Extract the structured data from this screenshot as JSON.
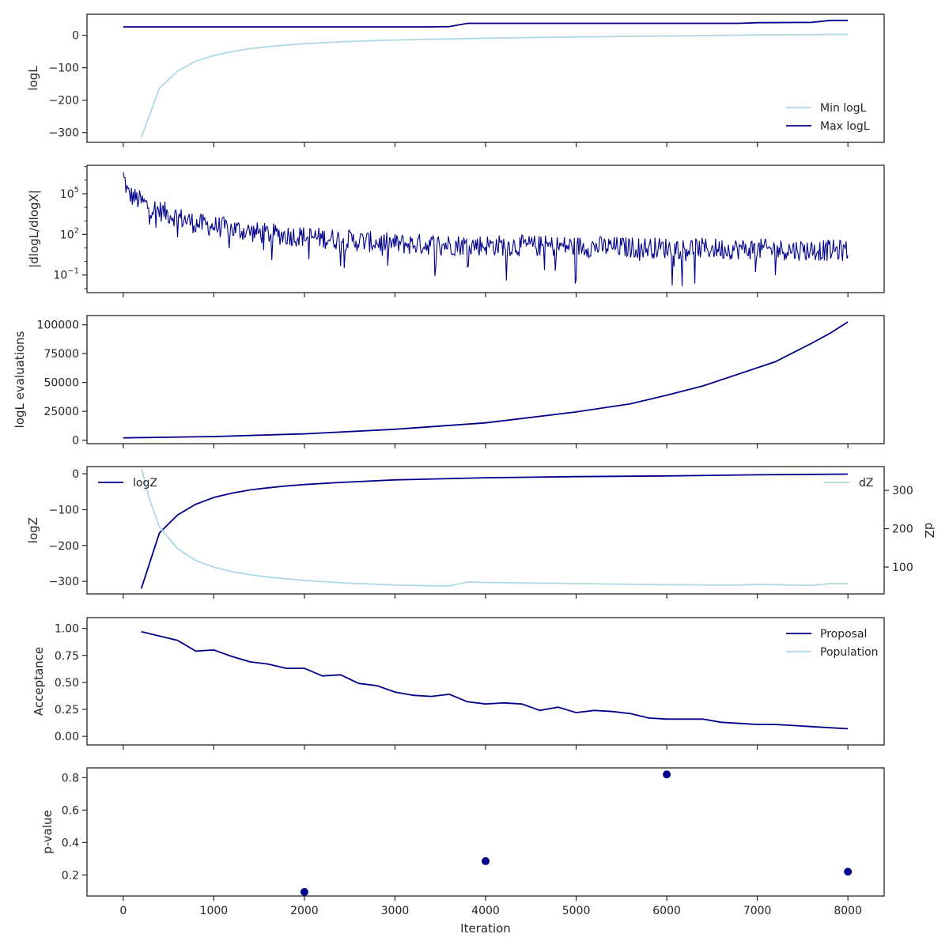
{
  "colors": {
    "dark": "#00008b",
    "light": "#add8e6",
    "axis": "#262626"
  },
  "chart_data": [
    {
      "type": "line",
      "ylabel": "logL",
      "xlim": [
        -400,
        8400
      ],
      "ylim": [
        -330,
        65
      ],
      "yticks": [
        {
          "v": 0,
          "label": "0"
        },
        {
          "v": -100,
          "label": "−100"
        },
        {
          "v": -200,
          "label": "−200"
        },
        {
          "v": -300,
          "label": "−300"
        }
      ],
      "legend": "lower-right",
      "series": [
        {
          "name": "Min logL",
          "color": "light",
          "x": [
            200,
            400,
            600,
            800,
            1000,
            1200,
            1400,
            1600,
            1800,
            2000,
            2400,
            2800,
            3200,
            3600,
            4000,
            5000,
            6000,
            7000,
            8000
          ],
          "y": [
            -315,
            -163,
            -110,
            -80,
            -62,
            -50,
            -41,
            -35,
            -30,
            -26,
            -20,
            -16,
            -13,
            -11,
            -9,
            -5,
            -2,
            1,
            3
          ]
        },
        {
          "name": "Max logL",
          "color": "dark",
          "x": [
            0,
            3400,
            3600,
            3800,
            4400,
            6800,
            7000,
            7600,
            7800,
            8000
          ],
          "y": [
            26,
            26,
            27,
            37,
            37,
            37,
            39,
            40,
            46,
            46
          ]
        }
      ]
    },
    {
      "type": "line",
      "ylabel": "|dlogL/dlogX|",
      "yscale": "log",
      "xlim": [
        -400,
        8400
      ],
      "ylim_log10": [
        -2.3,
        7.1
      ],
      "yticks": [
        {
          "v": 5,
          "base": "10",
          "exp": "5"
        },
        {
          "v": 2,
          "base": "10",
          "exp": "2"
        },
        {
          "v": -1,
          "base": "10",
          "exp": "−1"
        }
      ],
      "series": [
        {
          "color": "dark",
          "noisy": true,
          "x_start": 0,
          "x_end": 8000,
          "x_step": 10,
          "x_knots": [
            0,
            50,
            300,
            800,
            1500,
            3000,
            8000
          ],
          "log10_center_knots": [
            6.5,
            5.0,
            4.0,
            2.8,
            2.1,
            1.3,
            0.8
          ],
          "log10_spread": 0.8
        }
      ]
    },
    {
      "type": "line",
      "ylabel": "logL evaluations",
      "xlim": [
        -400,
        8400
      ],
      "ylim": [
        -3000,
        108000
      ],
      "yticks": [
        {
          "v": 0,
          "label": "0"
        },
        {
          "v": 25000,
          "label": "25000"
        },
        {
          "v": 50000,
          "label": "50000"
        },
        {
          "v": 75000,
          "label": "75000"
        },
        {
          "v": 100000,
          "label": "100000"
        }
      ],
      "series": [
        {
          "color": "dark",
          "x": [
            0,
            1000,
            2000,
            3000,
            4000,
            5000,
            5600,
            6000,
            6400,
            6800,
            7200,
            7600,
            7800,
            8000
          ],
          "y": [
            2000,
            3200,
            5500,
            9500,
            15000,
            24500,
            31500,
            39000,
            47000,
            57500,
            68000,
            84000,
            92500,
            102500
          ]
        }
      ]
    },
    {
      "type": "line",
      "ylabel": "logZ",
      "ylabel_right": "dZ",
      "xlim": [
        -400,
        8400
      ],
      "ylim": [
        -335,
        20
      ],
      "ylim_right": [
        30,
        362
      ],
      "yticks": [
        {
          "v": 0,
          "label": "0"
        },
        {
          "v": -100,
          "label": "−100"
        },
        {
          "v": -200,
          "label": "−200"
        },
        {
          "v": -300,
          "label": "−300"
        }
      ],
      "yticks_right": [
        {
          "v": 100,
          "label": "100"
        },
        {
          "v": 200,
          "label": "200"
        },
        {
          "v": 300,
          "label": "300"
        }
      ],
      "series": [
        {
          "name": "logZ",
          "color": "dark",
          "axis": "left",
          "x": [
            200,
            400,
            600,
            800,
            1000,
            1200,
            1400,
            1600,
            1800,
            2000,
            2400,
            3000,
            4000,
            5000,
            6000,
            7000,
            8000
          ],
          "y": [
            -320,
            -165,
            -115,
            -85,
            -66,
            -54,
            -45,
            -39,
            -34,
            -30,
            -24,
            -17,
            -11,
            -8,
            -6,
            -3,
            -1
          ]
        },
        {
          "name": "dZ",
          "color": "light",
          "axis": "right",
          "x": [
            200,
            300,
            400,
            600,
            800,
            1000,
            1200,
            1400,
            1600,
            2000,
            2400,
            3000,
            3400,
            3600,
            3800,
            4000,
            5000,
            6000,
            6800,
            7000,
            7600,
            7800,
            8000
          ],
          "y": [
            357,
            270,
            205,
            148,
            117,
            100,
            88,
            80,
            74,
            65,
            59,
            53,
            51,
            51,
            61,
            60,
            57,
            54,
            53,
            55,
            52,
            57,
            57
          ]
        }
      ]
    },
    {
      "type": "line",
      "ylabel": "Acceptance",
      "xlim": [
        -400,
        8400
      ],
      "ylim": [
        -0.08,
        1.1
      ],
      "yticks": [
        {
          "v": 0,
          "label": "0.00"
        },
        {
          "v": 0.25,
          "label": "0.25"
        },
        {
          "v": 0.5,
          "label": "0.50"
        },
        {
          "v": 0.75,
          "label": "0.75"
        },
        {
          "v": 1.0,
          "label": "1.00"
        }
      ],
      "legend": "upper-right",
      "series": [
        {
          "name": "Proposal",
          "color": "dark",
          "x": [
            200,
            400,
            600,
            800,
            1000,
            1200,
            1400,
            1600,
            1800,
            2000,
            2200,
            2400,
            2600,
            2800,
            3000,
            3200,
            3400,
            3600,
            3800,
            4000,
            4200,
            4400,
            4600,
            4800,
            5000,
            5200,
            5400,
            5600,
            5800,
            6000,
            6200,
            6400,
            6600,
            6800,
            7000,
            7200,
            7400,
            7600,
            7800,
            8000
          ],
          "y": [
            0.97,
            0.93,
            0.89,
            0.79,
            0.8,
            0.74,
            0.69,
            0.67,
            0.63,
            0.63,
            0.56,
            0.57,
            0.49,
            0.47,
            0.41,
            0.38,
            0.37,
            0.39,
            0.32,
            0.3,
            0.31,
            0.3,
            0.24,
            0.27,
            0.22,
            0.24,
            0.23,
            0.21,
            0.17,
            0.16,
            0.16,
            0.16,
            0.13,
            0.12,
            0.11,
            0.11,
            0.1,
            0.09,
            0.08,
            0.07
          ]
        },
        {
          "name": "Population",
          "color": "light",
          "x": [],
          "y": []
        }
      ]
    },
    {
      "type": "scatter",
      "ylabel": "p-value",
      "xlabel": "Iteration",
      "xlim": [
        -400,
        8400
      ],
      "ylim": [
        0.07,
        0.86
      ],
      "yticks": [
        {
          "v": 0.2,
          "label": "0.2"
        },
        {
          "v": 0.4,
          "label": "0.4"
        },
        {
          "v": 0.6,
          "label": "0.6"
        },
        {
          "v": 0.8,
          "label": "0.8"
        }
      ],
      "xticks": [
        {
          "v": 0,
          "label": "0"
        },
        {
          "v": 1000,
          "label": "1000"
        },
        {
          "v": 2000,
          "label": "2000"
        },
        {
          "v": 3000,
          "label": "3000"
        },
        {
          "v": 4000,
          "label": "4000"
        },
        {
          "v": 5000,
          "label": "5000"
        },
        {
          "v": 6000,
          "label": "6000"
        },
        {
          "v": 7000,
          "label": "7000"
        },
        {
          "v": 8000,
          "label": "8000"
        }
      ],
      "series": [
        {
          "color": "dark",
          "x": [
            2000,
            4000,
            6000,
            8000
          ],
          "y": [
            0.095,
            0.285,
            0.82,
            0.22
          ]
        }
      ]
    }
  ]
}
